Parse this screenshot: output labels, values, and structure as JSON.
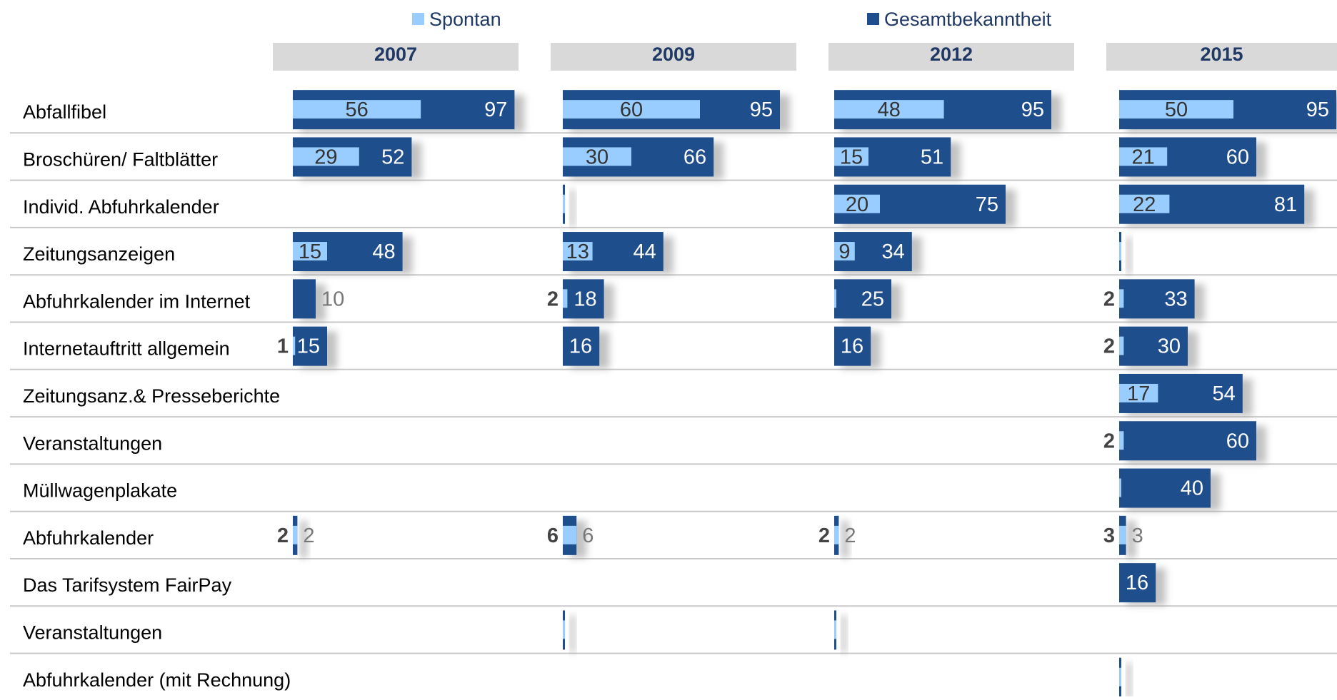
{
  "chart_data": {
    "type": "bar",
    "panels": [
      "2007",
      "2009",
      "2012",
      "2015"
    ],
    "xlim": [
      0,
      100
    ],
    "categories": [
      "Abfallfibel",
      "Broschüren/ Faltblätter",
      "Individ. Abfuhrkalender",
      "Zeitungsanzeigen",
      "Abfuhrkalender im Internet",
      "Internetauftritt allgemein",
      "Zeitungsanz.& Presseberichte",
      "Veranstaltungen",
      "Müllwagenplakate",
      "Abfuhrkalender",
      "Das Tarifsystem FairPay",
      "Veranstaltungen",
      "Abfuhrkalender (mit Rechnung)"
    ],
    "series": [
      {
        "name": "Spontan",
        "color": "#99ccff",
        "values": [
          [
            56,
            29,
            null,
            15,
            null,
            1,
            null,
            null,
            null,
            2,
            null,
            null,
            null
          ],
          [
            60,
            30,
            0,
            13,
            2,
            null,
            null,
            null,
            null,
            6,
            null,
            0,
            null
          ],
          [
            48,
            15,
            20,
            9,
            0,
            null,
            null,
            null,
            null,
            2,
            null,
            0,
            null
          ],
          [
            50,
            21,
            22,
            0,
            2,
            2,
            17,
            2,
            0,
            3,
            null,
            null,
            0
          ]
        ],
        "value_labels": [
          [
            "56",
            "29",
            null,
            "15",
            null,
            "1",
            null,
            null,
            null,
            "2",
            null,
            null,
            null
          ],
          [
            "60",
            "30",
            null,
            "13",
            "2",
            null,
            null,
            null,
            null,
            "6",
            null,
            null,
            null
          ],
          [
            "48",
            "15",
            "20",
            "9",
            null,
            null,
            null,
            null,
            null,
            "2",
            null,
            null,
            null
          ],
          [
            "50",
            "21",
            "22",
            null,
            "2",
            "2",
            "17",
            "2",
            null,
            "3",
            null,
            null,
            null
          ]
        ]
      },
      {
        "name": "Gesamtbekanntheit",
        "color": "#1f4e8c",
        "values": [
          [
            97,
            52,
            null,
            48,
            10,
            15,
            null,
            null,
            null,
            2,
            null,
            null,
            null
          ],
          [
            95,
            66,
            0,
            44,
            18,
            16,
            null,
            null,
            null,
            6,
            null,
            0,
            null
          ],
          [
            95,
            51,
            75,
            34,
            25,
            16,
            null,
            null,
            null,
            2,
            null,
            0,
            null
          ],
          [
            95,
            60,
            81,
            0,
            33,
            30,
            54,
            60,
            40,
            3,
            16,
            null,
            0
          ]
        ],
        "value_labels": [
          [
            "97",
            "52",
            null,
            "48",
            "10",
            "15",
            null,
            null,
            null,
            "2",
            null,
            null,
            null
          ],
          [
            "95",
            "66",
            null,
            "44",
            "18",
            "16",
            null,
            null,
            null,
            "6",
            null,
            null,
            null
          ],
          [
            "95",
            "51",
            "75",
            "34",
            "25",
            "16",
            null,
            null,
            null,
            "2",
            null,
            null,
            null
          ],
          [
            "95",
            "60",
            "81",
            null,
            "33",
            "30",
            "54",
            "60",
            "40",
            "3",
            "16",
            null,
            null
          ]
        ]
      }
    ]
  }
}
